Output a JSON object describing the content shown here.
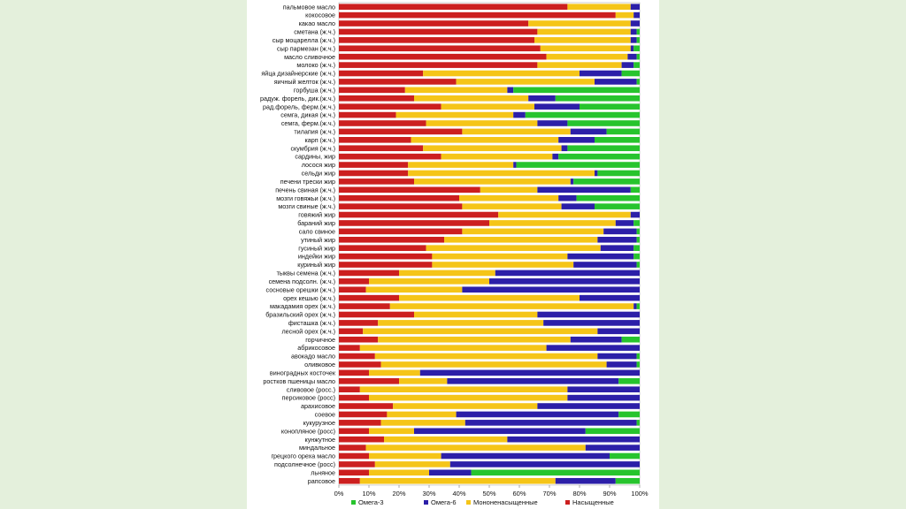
{
  "chart_data": {
    "type": "bar",
    "orientation": "horizontal",
    "stacked": true,
    "percent_axis": true,
    "xlim": [
      0,
      100
    ],
    "x_ticks": [
      "0%",
      "10%",
      "20%",
      "30%",
      "40%",
      "50%",
      "60%",
      "70%",
      "80%",
      "90%",
      "100%"
    ],
    "categories": [
      "пальмовое масло",
      "кокосовое",
      "какао масло",
      "сметана (ж.ч.)",
      "сыр моцарелла (ж.ч.)",
      "сыр пармезан (ж.ч.)",
      "масло сливочное",
      "молоко (ж.ч.)",
      "яйца дизайнерские (ж.ч.)",
      "яичный желток (ж.ч.)",
      "горбуша (ж.ч.)",
      "радуж. форель, дик.(ж.ч.)",
      "рад.форель, ферм.(ж.ч.)",
      "семга, дикая (ж.ч.)",
      "семга, ферм.(ж.ч.)",
      "тилапия (ж.ч.)",
      "карп (ж.ч.)",
      "скумбрия (ж.ч.)",
      "сардины, жир",
      "лосося жир",
      "сельди жир",
      "печени трески жир",
      "печень свиная (ж.ч.)",
      "мозги говяжьи (ж.ч.)",
      "мозги свиные (ж.ч.)",
      "говяжий жир",
      "бараний жир",
      "сало свиное",
      "утиный жир",
      "гусиный жир",
      "индейки жир",
      "куриный жир",
      "тыквы семена (ж.ч.)",
      "семена подсолн. (ж.ч.)",
      "сосновые орешки (ж.ч.)",
      "орех кешью (ж.ч.)",
      "макадамия орех (ж.ч.)",
      "бразильский орех (ж.ч.)",
      "фисташка (ж.ч.)",
      "лесной орех (ж.ч.)",
      "горчичное",
      "абрикосовое",
      "авокадо масло",
      "оливковое",
      "виноградных косточек",
      "ростков пшеницы масло",
      "сливовое (росс.)",
      "персиковое (росс)",
      "арахисовое",
      "соевое",
      "кукурузное",
      "конопляное (росс)",
      "кунжутное",
      "миндальное",
      "грецкого ореха масло",
      "подсолнечное (росс)",
      "льняное",
      "рапсовое"
    ],
    "series": [
      {
        "name": "Насыщенные",
        "color": "#cc1f1f",
        "values": [
          76,
          92,
          63,
          66,
          65,
          67,
          69,
          66,
          28,
          39,
          22,
          25,
          34,
          19,
          29,
          41,
          24,
          28,
          34,
          23,
          23,
          25,
          47,
          40,
          41,
          53,
          50,
          41,
          35,
          29,
          31,
          31,
          20,
          10,
          9,
          20,
          17,
          25,
          13,
          8,
          13,
          7,
          12,
          14,
          10,
          20,
          7,
          10,
          18,
          16,
          14,
          10,
          15,
          9,
          10,
          12,
          10,
          7
        ]
      },
      {
        "name": "Мононенасыщенные",
        "color": "#f5c518",
        "values": [
          21,
          6,
          34,
          31,
          32,
          30,
          27,
          28,
          52,
          46,
          34,
          38,
          31,
          39,
          37,
          36,
          49,
          46,
          37,
          35,
          62,
          52,
          19,
          33,
          33,
          44,
          42,
          47,
          51,
          58,
          45,
          47,
          32,
          40,
          32,
          60,
          81,
          41,
          55,
          78,
          64,
          62,
          74,
          75,
          17,
          16,
          69,
          66,
          48,
          23,
          28,
          15,
          41,
          73,
          24,
          25,
          20,
          65
        ]
      },
      {
        "name": "Омега-6",
        "color": "#2c1fa8",
        "values": [
          3,
          2,
          3,
          2,
          2,
          1,
          3,
          4,
          14,
          14,
          2,
          9,
          15,
          4,
          10,
          12,
          12,
          2,
          2,
          1,
          1,
          1,
          31,
          6,
          11,
          3,
          6,
          11,
          13,
          11,
          22,
          21,
          48,
          50,
          59,
          20,
          1,
          34,
          32,
          14,
          17,
          31,
          13,
          10,
          73,
          57,
          24,
          24,
          34,
          54,
          57,
          57,
          44,
          18,
          56,
          63,
          14,
          20
        ]
      },
      {
        "name": "Омега-3",
        "color": "#27c42d",
        "values": [
          0,
          0,
          0,
          1,
          1,
          2,
          1,
          2,
          6,
          1,
          42,
          28,
          20,
          38,
          24,
          11,
          15,
          24,
          27,
          41,
          14,
          22,
          3,
          21,
          15,
          0,
          2,
          1,
          1,
          2,
          2,
          1,
          0,
          0,
          0,
          0,
          1,
          0,
          0,
          0,
          6,
          0,
          1,
          1,
          0,
          7,
          0,
          0,
          0,
          7,
          1,
          18,
          0,
          0,
          10,
          0,
          56,
          8
        ]
      }
    ],
    "legend_position": "bottom",
    "legend_order": [
      "Омега-3",
      "Омега-6",
      "Мононенасыщенные",
      "Насыщенные"
    ],
    "grid": true
  }
}
